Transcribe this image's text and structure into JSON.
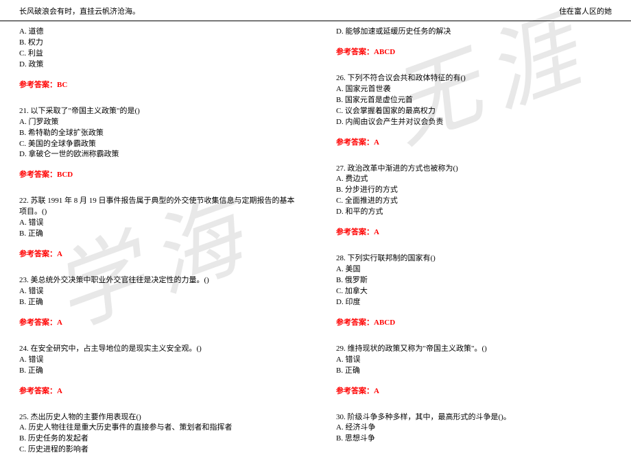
{
  "header": {
    "left": "长风破浪会有时，直挂云帆济沧海。",
    "right": "住在富人区的她"
  },
  "watermark": {
    "char1": "学海",
    "char2": "无涯"
  },
  "left_col": {
    "q20": {
      "opts": [
        "A. 道德",
        "B. 权力",
        "C. 利益",
        "D. 政策"
      ],
      "answer": "参考答案：BC"
    },
    "q21": {
      "stem": "21. 以下采取了\"帝国主义政策\"的是()",
      "opts": [
        "A. 门罗政策",
        "B. 希特勒的全球扩张政策",
        "C. 美国的全球争霸政策",
        "D. 拿破仑一世的欧洲称霸政策"
      ],
      "answer": "参考答案：BCD"
    },
    "q22": {
      "stem": "22. 苏联 1991 年 8 月 19 日事件报告属于典型的外交使节收集信息与定期报告的基本项目。()",
      "opts": [
        "A. 错误",
        "B. 正确"
      ],
      "answer": "参考答案：A"
    },
    "q23": {
      "stem": "23. 美总统外交决策中职业外交官往往是决定性的力量。()",
      "opts": [
        "A. 错误",
        "B. 正确"
      ],
      "answer": "参考答案：A"
    },
    "q24": {
      "stem": "24. 在安全研究中，占主导地位的是现实主义安全观。()",
      "opts": [
        "A. 错误",
        "B. 正确"
      ],
      "answer": "参考答案：A"
    },
    "q25": {
      "stem": "25. 杰出历史人物的主要作用表现在()",
      "opts": [
        "A. 历史人物往往是重大历史事件的直接参与者、策划者和指挥者",
        "B. 历史任务的发起者",
        "C. 历史进程的影响者"
      ]
    }
  },
  "right_col": {
    "q25d": {
      "opt": "D. 能够加速或延缓历史任务的解决",
      "answer": "参考答案：ABCD"
    },
    "q26": {
      "stem": "26. 下列不符合议会共和政体特征的有()",
      "opts": [
        "A. 国家元首世袭",
        "B. 国家元首是虚位元首",
        "C. 议会掌握着国家的最高权力",
        "D. 内阁由议会产生并对议会负责"
      ],
      "answer": "参考答案：A"
    },
    "q27": {
      "stem": "27. 政治改革中渐进的方式也被称为()",
      "opts": [
        "A. 费边式",
        "B. 分步进行的方式",
        "C. 全面推进的方式",
        "D. 和平的方式"
      ],
      "answer": "参考答案：A"
    },
    "q28": {
      "stem": "28. 下列实行联邦制的国家有()",
      "opts": [
        "A. 美国",
        "B. 俄罗斯",
        "C. 加拿大",
        "D. 印度"
      ],
      "answer": "参考答案：ABCD"
    },
    "q29": {
      "stem": "29. 维持现状的政策又称为\"帝国主义政策\"。()",
      "opts": [
        "A. 错误",
        "B. 正确"
      ],
      "answer": "参考答案：A"
    },
    "q30": {
      "stem": "30. 阶级斗争多种多样，其中，最高形式的斗争是()。",
      "opts": [
        "A. 经济斗争",
        "B. 思想斗争"
      ]
    }
  }
}
